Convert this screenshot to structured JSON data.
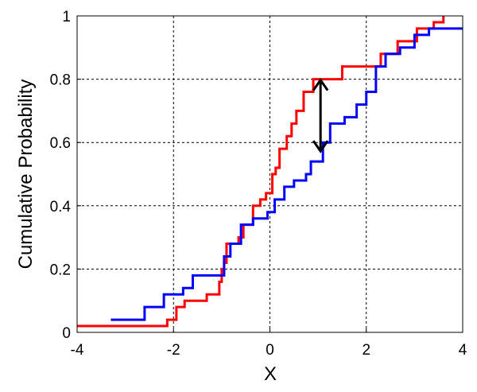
{
  "chart_data": {
    "type": "line",
    "step": "post",
    "xlabel": "X",
    "ylabel": "Cumulative Probability",
    "xlim": [
      -4,
      4
    ],
    "xticks": [
      -4,
      -2,
      0,
      2,
      4
    ],
    "ylim": [
      0,
      1
    ],
    "yticks": [
      0,
      0.2,
      0.4,
      0.6,
      0.8,
      1
    ],
    "grid": true,
    "series": [
      {
        "color": "#ff0000",
        "x": [
          -4,
          -2.13,
          -1.94,
          -1.77,
          -1.31,
          -1.05,
          -1.0,
          -0.95,
          -0.9,
          -0.65,
          -0.55,
          -0.35,
          -0.2,
          -0.08,
          0.05,
          0.12,
          0.2,
          0.35,
          0.45,
          0.55,
          0.7,
          0.9,
          1.5,
          2.3,
          2.65,
          3.05,
          3.4,
          3.6
        ],
        "values": [
          0.02,
          0.04,
          0.08,
          0.1,
          0.12,
          0.16,
          0.2,
          0.22,
          0.28,
          0.3,
          0.34,
          0.4,
          0.42,
          0.44,
          0.5,
          0.52,
          0.58,
          0.62,
          0.66,
          0.7,
          0.76,
          0.8,
          0.84,
          0.88,
          0.92,
          0.96,
          0.98,
          1
        ]
      },
      {
        "color": "#0000ff",
        "x": [
          -3.3,
          -2.6,
          -2.2,
          -1.8,
          -1.6,
          -0.95,
          -0.82,
          -0.6,
          -0.35,
          -0.05,
          0.1,
          0.3,
          0.5,
          0.75,
          0.85,
          1.1,
          1.25,
          1.55,
          1.8,
          2.0,
          2.2,
          2.4,
          2.7,
          3.0,
          3.3,
          4
        ],
        "values": [
          0.04,
          0.08,
          0.12,
          0.14,
          0.18,
          0.24,
          0.28,
          0.34,
          0.36,
          0.38,
          0.42,
          0.46,
          0.48,
          0.5,
          0.54,
          0.6,
          0.66,
          0.68,
          0.72,
          0.76,
          0.84,
          0.88,
          0.9,
          0.94,
          0.96,
          0.96
        ]
      }
    ],
    "arrow": {
      "x": 1.05,
      "y": [
        0.8,
        0.57
      ],
      "color": "#000000"
    }
  }
}
